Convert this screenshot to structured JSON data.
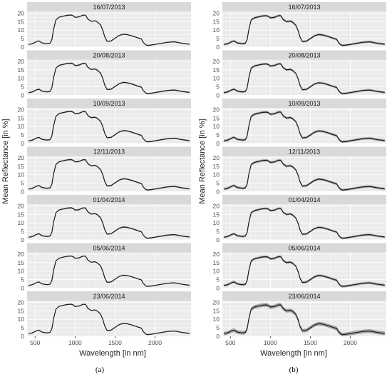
{
  "figure": {
    "y_axis_label": "Mean Reflectance [in %]",
    "x_axis_label": "Wavelength [in nm]",
    "panel_captions": [
      "(a)",
      "(b)"
    ],
    "x_tick_labels": [
      "500",
      "1000",
      "1500",
      "2000"
    ],
    "y_tick_labels": [
      "0",
      "5",
      "10",
      "15",
      "20"
    ],
    "colors": {
      "panel_bg": "#ebebeb",
      "strip_bg": "#d9d9d9",
      "grid": "#ffffff",
      "line": "#1a1a1a",
      "ribbon": "#999999"
    }
  },
  "chart_data": [
    {
      "type": "line",
      "panel": "(a)",
      "xlabel": "Wavelength [in nm]",
      "ylabel": "Mean Reflectance [in %]",
      "xlim": [
        400,
        2450
      ],
      "ylim": [
        0,
        21
      ],
      "facets": [
        "16/07/2013",
        "20/08/2013",
        "10/09/2013",
        "12/11/2013",
        "01/04/2014",
        "05/06/2014",
        "23/06/2014"
      ],
      "x": [
        420,
        450,
        480,
        520,
        550,
        580,
        620,
        660,
        690,
        710,
        730,
        760,
        800,
        850,
        900,
        950,
        980,
        1000,
        1050,
        1100,
        1130,
        1160,
        1200,
        1250,
        1280,
        1320,
        1350,
        1370,
        1400,
        1450,
        1500,
        1550,
        1600,
        1650,
        1700,
        1750,
        1800,
        1830,
        1850,
        1880,
        1900,
        1950,
        2000,
        2050,
        2100,
        2150,
        2200,
        2230,
        2260,
        2300,
        2350,
        2400,
        2430
      ],
      "y": [
        1.6,
        1.8,
        2.3,
        3.3,
        3.6,
        2.6,
        2.2,
        2.0,
        2.4,
        4.5,
        10,
        16,
        17.6,
        18.2,
        18.7,
        18.9,
        18.4,
        17.5,
        17.8,
        18.8,
        18.8,
        16.5,
        15.2,
        15.5,
        14.8,
        13.0,
        9.5,
        6.2,
        3.4,
        3.6,
        5.2,
        6.8,
        7.6,
        7.4,
        6.8,
        6.0,
        5.2,
        4.8,
        3.0,
        1.5,
        1.0,
        1.2,
        1.6,
        2.0,
        2.4,
        2.8,
        3.0,
        3.1,
        3.0,
        2.6,
        2.2,
        1.9,
        1.7
      ],
      "ribbon_halfwidth": [
        0.3,
        0.4,
        0.4,
        0.4,
        0.4,
        0.3,
        0.3
      ]
    },
    {
      "type": "line",
      "panel": "(b)",
      "xlabel": "Wavelength [in nm]",
      "ylabel": "Mean Reflectance [in %]",
      "xlim": [
        400,
        2450
      ],
      "ylim": [
        0,
        21
      ],
      "facets": [
        "16/07/2013",
        "20/08/2013",
        "10/09/2013",
        "12/11/2013",
        "01/04/2014",
        "05/06/2014",
        "23/06/2014"
      ],
      "x": [
        420,
        450,
        480,
        520,
        550,
        580,
        620,
        660,
        690,
        710,
        730,
        760,
        800,
        850,
        900,
        950,
        980,
        1000,
        1050,
        1100,
        1130,
        1160,
        1200,
        1250,
        1280,
        1320,
        1350,
        1370,
        1400,
        1450,
        1500,
        1550,
        1600,
        1650,
        1700,
        1750,
        1800,
        1830,
        1850,
        1880,
        1900,
        1950,
        2000,
        2050,
        2100,
        2150,
        2200,
        2230,
        2260,
        2300,
        2350,
        2400,
        2430
      ],
      "y": [
        1.6,
        1.8,
        2.3,
        3.3,
        3.6,
        2.6,
        2.2,
        2.0,
        2.4,
        4.5,
        10,
        16,
        17.2,
        17.8,
        18.3,
        18.5,
        18.0,
        17.2,
        17.5,
        18.5,
        18.5,
        16.3,
        15.0,
        15.3,
        14.6,
        12.8,
        9.3,
        6.0,
        3.3,
        3.5,
        5.0,
        6.6,
        7.4,
        7.2,
        6.6,
        5.8,
        5.0,
        4.6,
        2.9,
        1.4,
        1.0,
        1.2,
        1.6,
        2.0,
        2.4,
        2.8,
        3.0,
        3.1,
        3.0,
        2.6,
        2.2,
        1.9,
        1.7
      ],
      "ribbon_halfwidth": [
        0.6,
        0.6,
        0.7,
        0.7,
        0.6,
        0.7,
        1.1
      ]
    }
  ]
}
